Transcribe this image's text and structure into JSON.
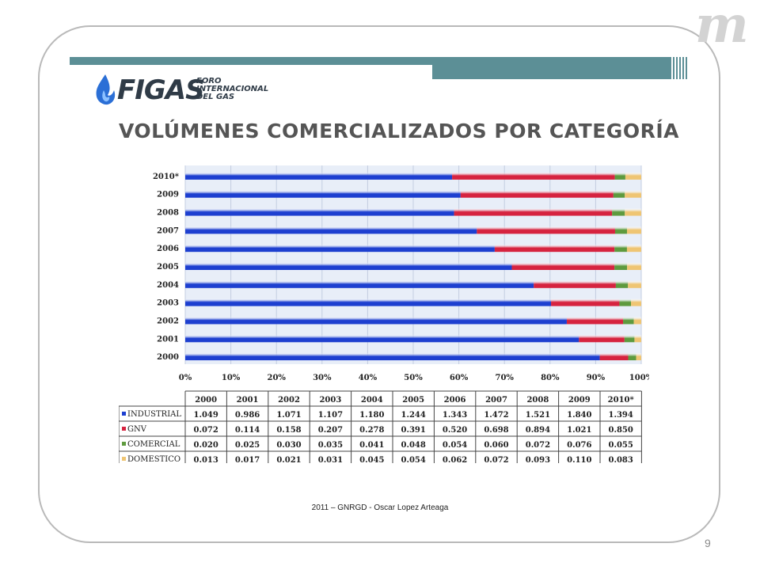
{
  "slide": {
    "corner_logo_text": "m",
    "brand_name": "FIGAS",
    "brand_subtitle_lines": [
      "FORO",
      "INTERNACIONAL",
      "DEL GAS"
    ],
    "title": "VOLÚMENES COMERCIALIZADOS POR CATEGORÍA",
    "footer": "2011 – GNRGD - Oscar Lopez Arteaga",
    "page_number": "9"
  },
  "colors": {
    "accent_bar": "#5c8f96",
    "brand_flame": "#2b6fd6"
  },
  "chart_data": {
    "type": "bar",
    "orientation": "horizontal",
    "stacked": "percent",
    "categories": [
      "2000",
      "2001",
      "2002",
      "2003",
      "2004",
      "2005",
      "2006",
      "2007",
      "2008",
      "2009",
      "2010*"
    ],
    "series": [
      {
        "name": "INDUSTRIAL",
        "color": "#1d3fd0",
        "values": [
          "1.049",
          "0.986",
          "1.071",
          "1.107",
          "1.180",
          "1.244",
          "1.343",
          "1.472",
          "1.521",
          "1.840",
          "1.394"
        ]
      },
      {
        "name": "GNV",
        "color": "#d6233f",
        "values": [
          "0.072",
          "0.114",
          "0.158",
          "0.207",
          "0.278",
          "0.391",
          "0.520",
          "0.698",
          "0.894",
          "1.021",
          "0.850"
        ]
      },
      {
        "name": "COMERCIAL",
        "color": "#5e9a3e",
        "values": [
          "0.020",
          "0.025",
          "0.030",
          "0.035",
          "0.041",
          "0.048",
          "0.054",
          "0.060",
          "0.072",
          "0.076",
          "0.055"
        ]
      },
      {
        "name": "DOMESTICO",
        "color": "#efc573",
        "values": [
          "0.013",
          "0.017",
          "0.021",
          "0.031",
          "0.045",
          "0.054",
          "0.062",
          "0.072",
          "0.093",
          "0.110",
          "0.083"
        ]
      }
    ],
    "x_ticks": [
      "0%",
      "10%",
      "20%",
      "30%",
      "40%",
      "50%",
      "60%",
      "70%",
      "80%",
      "90%",
      "100%"
    ],
    "xlim": [
      0,
      100
    ],
    "grid": true,
    "legend": "data-table"
  }
}
